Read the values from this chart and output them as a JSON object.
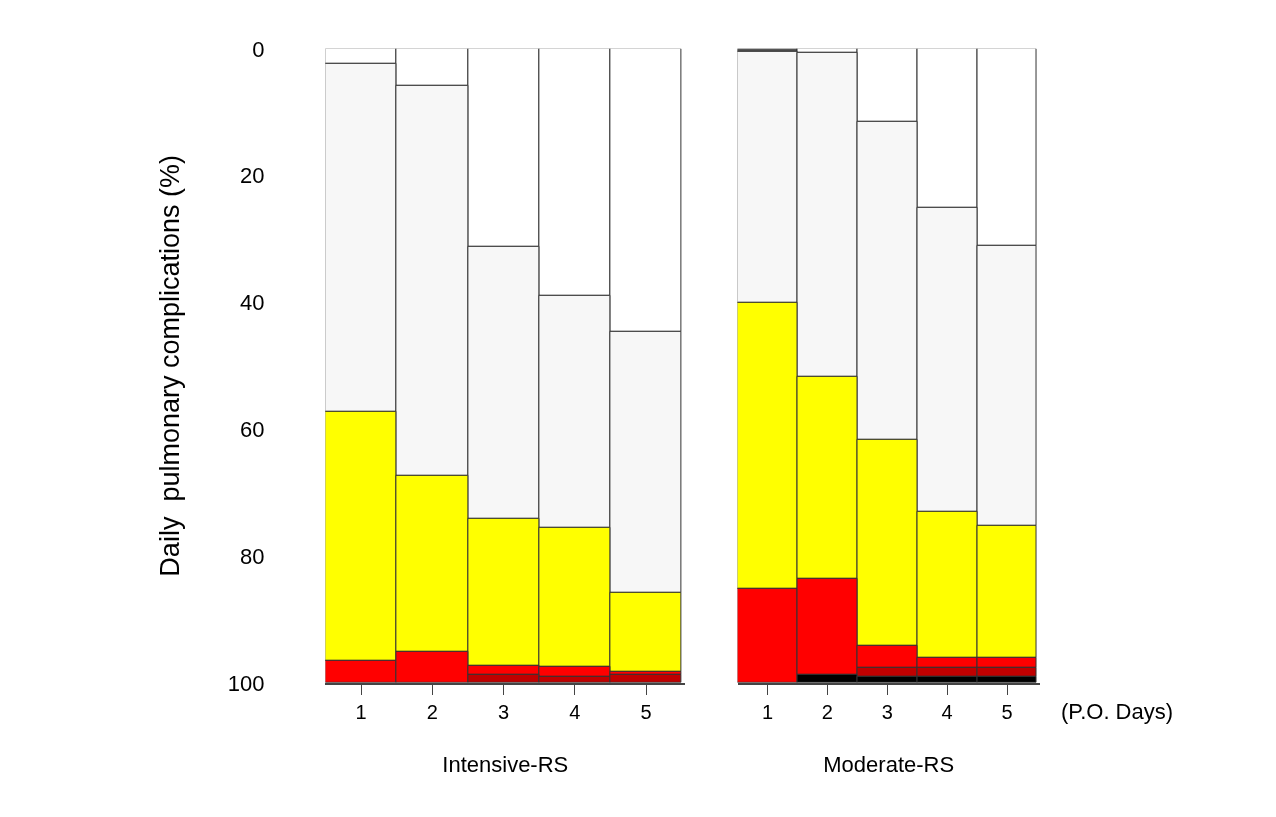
{
  "chart_data": [
    {
      "type": "bar",
      "stacked": true,
      "xlabel": "Intensive-RS",
      "ylabel": "Daily  pulmonary complications (%)",
      "categories": [
        "1",
        "2",
        "3",
        "4",
        "5"
      ],
      "ylim": [
        100,
        0
      ],
      "yticks": [
        0,
        20,
        40,
        60,
        80,
        100
      ],
      "series": [
        {
          "color": "#ffffff",
          "values": [
            2.3,
            5.8,
            31.2,
            38.9,
            44.6
          ]
        },
        {
          "color": "#f7f7f7",
          "values": [
            55.0,
            61.6,
            42.9,
            36.7,
            41.2
          ]
        },
        {
          "color": "#ffff00",
          "values": [
            39.2,
            27.7,
            23.2,
            21.8,
            12.4
          ]
        },
        {
          "color": "#ff0000",
          "values": [
            3.5,
            4.9,
            1.5,
            1.6,
            0.5
          ]
        },
        {
          "color": "#c00000",
          "values": [
            null,
            null,
            1.2,
            1.0,
            1.3
          ]
        }
      ]
    },
    {
      "type": "bar",
      "stacked": true,
      "xlabel": "Moderate-RS",
      "categories": [
        "1",
        "2",
        "3",
        "4",
        "5"
      ],
      "ylim": [
        100,
        0
      ],
      "tick_labels": "x",
      "annotations": [
        "(P.O. Days)"
      ],
      "series": [
        {
          "colors": [
            "#555555",
            "#ffffff",
            "#ffffff",
            "#ffffff",
            "#ffffff"
          ],
          "values": [
            0.4,
            0.7,
            11.5,
            25.0,
            31.1
          ]
        },
        {
          "color": "#f7f7f7",
          "values": [
            39.7,
            51.0,
            50.1,
            48.0,
            44.1
          ]
        },
        {
          "color": "#ffff00",
          "values": [
            45.1,
            31.9,
            32.6,
            23.0,
            20.8
          ]
        },
        {
          "color": "#ff0000",
          "values": [
            14.8,
            15.2,
            3.5,
            1.7,
            1.7
          ]
        },
        {
          "color": "#c00000",
          "values": [
            null,
            null,
            1.3,
            1.3,
            1.3
          ]
        },
        {
          "color": "#000000",
          "values": [
            null,
            1.2,
            1.0,
            1.0,
            1.0
          ]
        }
      ]
    }
  ]
}
